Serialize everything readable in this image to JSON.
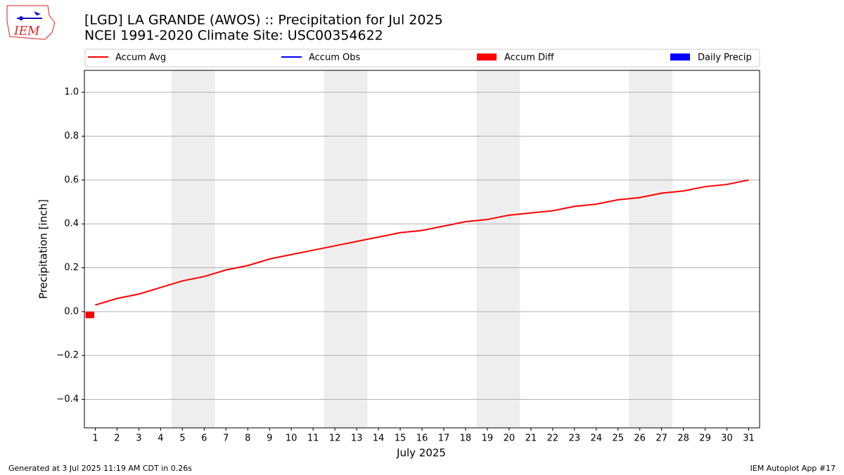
{
  "chart_data": {
    "type": "line",
    "logo_text": "IEM",
    "title": "[LGD] LA GRANDE (AWOS) :: Precipitation for Jul 2025",
    "subtitle": "NCEI 1991-2020 Climate Site: USC00354622",
    "xlabel": "July 2025",
    "ylabel": "Precipitation [inch]",
    "footer_left": "Generated at 3 Jul 2025 11:19 AM CDT in 0.26s",
    "footer_right": "IEM Autoplot App #17",
    "x": [
      1,
      2,
      3,
      4,
      5,
      6,
      7,
      8,
      9,
      10,
      11,
      12,
      13,
      14,
      15,
      16,
      17,
      18,
      19,
      20,
      21,
      22,
      23,
      24,
      25,
      26,
      27,
      28,
      29,
      30,
      31
    ],
    "xlim": [
      0.5,
      31.5
    ],
    "xticks": [
      1,
      2,
      3,
      4,
      5,
      6,
      7,
      8,
      9,
      10,
      11,
      12,
      13,
      14,
      15,
      16,
      17,
      18,
      19,
      20,
      21,
      22,
      23,
      24,
      25,
      26,
      27,
      28,
      29,
      30,
      31
    ],
    "ylim": [
      -0.53,
      1.1
    ],
    "yticks": [
      {
        "value": -0.4,
        "label": "−0.4"
      },
      {
        "value": -0.2,
        "label": "−0.2"
      },
      {
        "value": 0,
        "label": "0.0"
      },
      0.2,
      0.4,
      0.6,
      0.8,
      {
        "value": 1,
        "label": "1.0"
      }
    ],
    "grid": true,
    "highlight_spans": [
      [
        4.5,
        6.5
      ],
      [
        11.5,
        13.5
      ],
      [
        18.5,
        20.5
      ],
      [
        25.5,
        27.5
      ]
    ],
    "series": [
      {
        "name": "Accum Avg",
        "kind": "line",
        "color": "#ff0000",
        "values": [
          0.03,
          0.06,
          0.08,
          0.11,
          0.14,
          0.16,
          0.19,
          0.21,
          0.24,
          0.26,
          0.28,
          0.3,
          0.32,
          0.34,
          0.36,
          0.37,
          0.39,
          0.41,
          0.42,
          0.44,
          0.45,
          0.46,
          0.48,
          0.49,
          0.51,
          0.52,
          0.54,
          0.55,
          0.57,
          0.58,
          0.6
        ]
      },
      {
        "name": "Accum Obs",
        "kind": "line",
        "color": "#0000ff",
        "values": [
          0,
          null,
          null,
          null,
          null,
          null,
          null,
          null,
          null,
          null,
          null,
          null,
          null,
          null,
          null,
          null,
          null,
          null,
          null,
          null,
          null,
          null,
          null,
          null,
          null,
          null,
          null,
          null,
          null,
          null,
          null
        ]
      },
      {
        "name": "Accum Diff",
        "kind": "bar",
        "color": "#ff0000",
        "values": [
          -0.03,
          null,
          null,
          null,
          null,
          null,
          null,
          null,
          null,
          null,
          null,
          null,
          null,
          null,
          null,
          null,
          null,
          null,
          null,
          null,
          null,
          null,
          null,
          null,
          null,
          null,
          null,
          null,
          null,
          null,
          null
        ]
      },
      {
        "name": "Daily Precip",
        "kind": "bar",
        "color": "#0000ff",
        "values": [
          0,
          null,
          null,
          null,
          null,
          null,
          null,
          null,
          null,
          null,
          null,
          null,
          null,
          null,
          null,
          null,
          null,
          null,
          null,
          null,
          null,
          null,
          null,
          null,
          null,
          null,
          null,
          null,
          null,
          null,
          null
        ]
      }
    ]
  }
}
